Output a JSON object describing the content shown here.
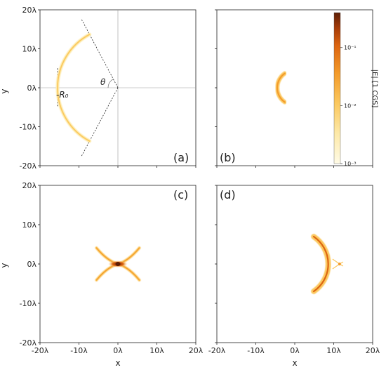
{
  "figure": {
    "xlabel": "x",
    "ylabel": "y",
    "colorbar_label": "|E| [1 CGS]"
  },
  "chart_data": {
    "type": "heatmap",
    "colormap": [
      "#fffbe6",
      "#fde9a8",
      "#fbc85e",
      "#f39a2a",
      "#dd6510",
      "#a53b08",
      "#5c1e06"
    ],
    "colorbar": {
      "label": "|E| [1 CGS]",
      "scale": "log",
      "range": [
        0.001,
        0.4
      ],
      "ticks": [
        {
          "value": 0.1,
          "label": "10⁻¹"
        },
        {
          "value": 0.01,
          "label": "10⁻²"
        },
        {
          "value": 0.001,
          "label": "10⁻³"
        }
      ]
    },
    "x_ticks": [
      {
        "value": -20,
        "label": "-20λ"
      },
      {
        "value": -10,
        "label": "-10λ"
      },
      {
        "value": 0,
        "label": "0λ"
      },
      {
        "value": 10,
        "label": "10λ"
      },
      {
        "value": 20,
        "label": "20λ"
      }
    ],
    "y_ticks": [
      {
        "value": 20,
        "label": "20λ"
      },
      {
        "value": 10,
        "label": "10λ"
      },
      {
        "value": 0,
        "label": "0λ"
      },
      {
        "value": -10,
        "label": "-10λ"
      },
      {
        "value": -20,
        "label": "-20λ"
      }
    ],
    "xlim": [
      -20,
      20
    ],
    "ylim": [
      -20,
      20
    ],
    "panels": [
      {
        "id": "a",
        "label": "(a)",
        "annotations": {
          "theta": "θ",
          "r0": "-R₀"
        },
        "arc": {
          "radius": 15.5,
          "half_angle_deg": 62,
          "intensity": 0.012,
          "width": 0.6
        },
        "guides": {
          "cross_at": [
            0,
            0
          ],
          "aperture_half_angle_deg": 62,
          "line_x": -15.5,
          "line_y_range": [
            -5,
            5
          ]
        }
      },
      {
        "id": "b",
        "label": "(b)",
        "arc": {
          "radius": 4.5,
          "half_angle_deg": 55,
          "center_x": 0,
          "intensity": 0.03,
          "width": 0.6
        }
      },
      {
        "id": "c",
        "label": "(c)",
        "focus": {
          "x": 0,
          "y": 0,
          "intensity": 0.4
        },
        "x_arms": {
          "length": 5.5,
          "intensity": 0.02
        }
      },
      {
        "id": "d",
        "label": "(d)",
        "arc": {
          "radius": 8.5,
          "half_angle_deg": 55,
          "center_x": 0,
          "intensity": 0.04,
          "width": 0.7
        },
        "small_focus": {
          "x": 11.5,
          "y": 0,
          "intensity": 0.012
        }
      }
    ]
  }
}
